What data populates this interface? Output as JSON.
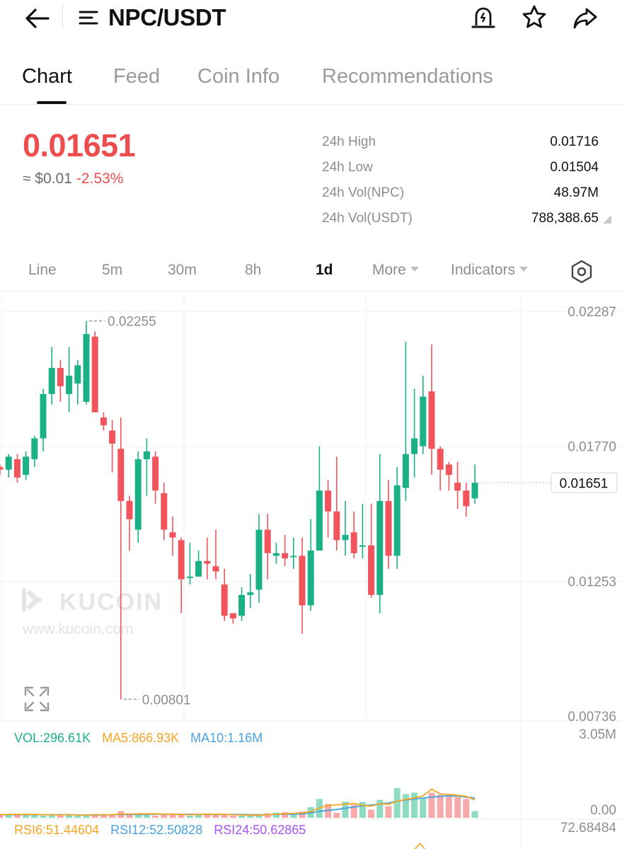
{
  "header": {
    "title": "NPC/USDT",
    "icons": [
      "back-arrow-icon",
      "menu-icon",
      "price-alert-icon",
      "star-icon",
      "share-icon"
    ]
  },
  "tabs": [
    {
      "label": "Chart",
      "active": true
    },
    {
      "label": "Feed"
    },
    {
      "label": "Coin Info"
    },
    {
      "label": "Recommendations"
    }
  ],
  "ticker": {
    "price": "0.01651",
    "usd_approx": "≈ $0.01",
    "change": "-2.53%",
    "stats": [
      {
        "label": "24h High",
        "value": "0.01716"
      },
      {
        "label": "24h Low",
        "value": "0.01504"
      },
      {
        "label": "24h Vol(NPC)",
        "value": "48.97M"
      },
      {
        "label": "24h Vol(USDT)",
        "value": "788,388.65"
      }
    ]
  },
  "intervals": {
    "items": [
      "Line",
      "5m",
      "30m",
      "8h",
      "1d"
    ],
    "active": "1d",
    "more": "More",
    "indicators": "Indicators"
  },
  "colors": {
    "up": "#1bb187",
    "down": "#f2545b",
    "vol_up": "#8fdcc3",
    "vol_down": "#f7a9ab",
    "ma5": "#f5a623",
    "ma10": "#4aa3df",
    "rsi24": "#a855f7",
    "price_red": "#ee4d4d"
  },
  "watermark": {
    "brand": "KUCOIN",
    "url": "www.kucoin.com"
  },
  "chart_data": {
    "type": "candlestick",
    "y_axis": {
      "min": 0.00736,
      "max": 0.02287,
      "ticks": [
        "0.02287",
        "0.01770",
        "0.01253",
        "0.00736"
      ]
    },
    "last_price_label": "0.01651",
    "max_label": "0.02255",
    "min_label": "0.00801",
    "candles": [
      [
        0.0169,
        0.0168,
        0.017,
        0.0166
      ],
      [
        0.0168,
        0.0173,
        0.0174,
        0.0165
      ],
      [
        0.0172,
        0.0165,
        0.0174,
        0.0163
      ],
      [
        0.0166,
        0.0173,
        0.0175,
        0.0164
      ],
      [
        0.0172,
        0.018,
        0.0181,
        0.0169
      ],
      [
        0.018,
        0.0197,
        0.0199,
        0.0175
      ],
      [
        0.0197,
        0.0207,
        0.0215,
        0.0193
      ],
      [
        0.0207,
        0.02,
        0.021,
        0.0194
      ],
      [
        0.0197,
        0.0204,
        0.0215,
        0.019
      ],
      [
        0.0201,
        0.0208,
        0.021,
        0.0193
      ],
      [
        0.0194,
        0.022,
        0.0225,
        0.0193
      ],
      [
        0.0219,
        0.019,
        0.0221,
        0.019
      ],
      [
        0.0188,
        0.0185,
        0.019,
        0.0183
      ],
      [
        0.0183,
        0.0178,
        0.0187,
        0.0167
      ],
      [
        0.0176,
        0.0156,
        0.0188,
        0.008
      ],
      [
        0.0156,
        0.0149,
        0.0158,
        0.0137
      ],
      [
        0.0145,
        0.0172,
        0.0175,
        0.014
      ],
      [
        0.0172,
        0.0175,
        0.018,
        0.0158
      ],
      [
        0.0173,
        0.016,
        0.0175,
        0.0155
      ],
      [
        0.0159,
        0.0145,
        0.0163,
        0.0141
      ],
      [
        0.0144,
        0.0142,
        0.015,
        0.0135
      ],
      [
        0.0141,
        0.0126,
        0.0142,
        0.0113
      ],
      [
        0.0127,
        0.0127,
        0.014,
        0.0124
      ],
      [
        0.0127,
        0.0133,
        0.0137,
        0.0128
      ],
      [
        0.0133,
        0.0132,
        0.0142,
        0.0126
      ],
      [
        0.0131,
        0.0129,
        0.0145,
        0.0126
      ],
      [
        0.0124,
        0.0112,
        0.013,
        0.011
      ],
      [
        0.0113,
        0.0111,
        0.0113,
        0.0109
      ],
      [
        0.0112,
        0.012,
        0.0123,
        0.011
      ],
      [
        0.012,
        0.0121,
        0.0128,
        0.0115
      ],
      [
        0.0122,
        0.0145,
        0.0151,
        0.0117
      ],
      [
        0.0145,
        0.0136,
        0.0151,
        0.0126
      ],
      [
        0.0135,
        0.0136,
        0.014,
        0.0132
      ],
      [
        0.0136,
        0.0134,
        0.0143,
        0.0131
      ],
      [
        0.0135,
        0.0135,
        0.0142,
        0.013
      ],
      [
        0.0135,
        0.0116,
        0.0142,
        0.0105
      ],
      [
        0.0116,
        0.0137,
        0.0149,
        0.0114
      ],
      [
        0.0137,
        0.016,
        0.0177,
        0.0137
      ],
      [
        0.016,
        0.0152,
        0.0164,
        0.0142
      ],
      [
        0.0152,
        0.0141,
        0.0173,
        0.0137
      ],
      [
        0.0141,
        0.0143,
        0.0156,
        0.0135
      ],
      [
        0.0144,
        0.0136,
        0.0152,
        0.0134
      ],
      [
        0.0139,
        0.0139,
        0.0155,
        0.0134
      ],
      [
        0.0139,
        0.012,
        0.0155,
        0.0119
      ],
      [
        0.012,
        0.0156,
        0.0174,
        0.0113
      ],
      [
        0.0156,
        0.0135,
        0.0164,
        0.013
      ],
      [
        0.0135,
        0.0162,
        0.0169,
        0.013
      ],
      [
        0.0161,
        0.0174,
        0.0217,
        0.0156
      ],
      [
        0.0174,
        0.018,
        0.0199,
        0.0165
      ],
      [
        0.0177,
        0.0196,
        0.0204,
        0.0174
      ],
      [
        0.0198,
        0.0176,
        0.0216,
        0.0166
      ],
      [
        0.0176,
        0.0168,
        0.0177,
        0.016
      ],
      [
        0.017,
        0.0166,
        0.0171,
        0.016
      ],
      [
        0.0163,
        0.016,
        0.0171,
        0.0153
      ],
      [
        0.016,
        0.0154,
        0.0163,
        0.015
      ],
      [
        0.0157,
        0.0163,
        0.017,
        0.0155
      ]
    ],
    "volume": {
      "label": "VOL:296.61K",
      "ma5_label": "MA5:866.93K",
      "ma10_label": "MA10:1.16M",
      "ticks": [
        "3.05M",
        "0.00"
      ],
      "max": 3.05,
      "values": [
        0.18,
        0.14,
        0.12,
        0.16,
        0.16,
        0.1,
        0.14,
        0.1,
        0.16,
        0.12,
        0.14,
        0.16,
        0.12,
        0.12,
        0.3,
        0.16,
        0.18,
        0.16,
        0.1,
        0.14,
        0.2,
        0.16,
        0.1,
        0.14,
        0.2,
        0.14,
        0.12,
        0.1,
        0.1,
        0.12,
        0.16,
        0.2,
        0.24,
        0.26,
        0.16,
        0.28,
        0.48,
        0.84,
        0.62,
        0.22,
        0.72,
        0.58,
        0.7,
        0.36,
        0.8,
        0.52,
        1.32,
        1.06,
        1.12,
        0.9,
        1.12,
        1.02,
        0.98,
        0.92,
        0.84,
        0.3
      ],
      "ma5": [
        0.14,
        0.15,
        0.15,
        0.15,
        0.15,
        0.14,
        0.14,
        0.13,
        0.14,
        0.13,
        0.13,
        0.14,
        0.14,
        0.14,
        0.17,
        0.17,
        0.18,
        0.18,
        0.18,
        0.17,
        0.16,
        0.15,
        0.14,
        0.15,
        0.16,
        0.16,
        0.15,
        0.14,
        0.13,
        0.12,
        0.12,
        0.14,
        0.16,
        0.18,
        0.2,
        0.22,
        0.28,
        0.44,
        0.55,
        0.58,
        0.61,
        0.64,
        0.56,
        0.52,
        0.63,
        0.6,
        0.74,
        0.82,
        0.88,
        0.98,
        1.28,
        1.06,
        1.04,
        1.0,
        0.96,
        0.8
      ],
      "ma10": [
        0.14,
        0.14,
        0.14,
        0.14,
        0.14,
        0.14,
        0.14,
        0.14,
        0.14,
        0.13,
        0.13,
        0.13,
        0.13,
        0.14,
        0.15,
        0.15,
        0.15,
        0.15,
        0.16,
        0.16,
        0.16,
        0.16,
        0.16,
        0.16,
        0.15,
        0.15,
        0.15,
        0.15,
        0.15,
        0.14,
        0.14,
        0.14,
        0.15,
        0.16,
        0.16,
        0.18,
        0.22,
        0.29,
        0.34,
        0.37,
        0.43,
        0.48,
        0.54,
        0.57,
        0.62,
        0.66,
        0.74,
        0.8,
        0.84,
        0.88,
        0.92,
        0.96,
        0.98,
        0.97,
        0.92,
        0.88
      ]
    },
    "rsi": {
      "rsi6_label": "RSI6:51.44604",
      "rsi12_label": "RSI12:52.50828",
      "rsi24_label": "RSI24:50.62865",
      "top_tick": "72.68484"
    }
  }
}
